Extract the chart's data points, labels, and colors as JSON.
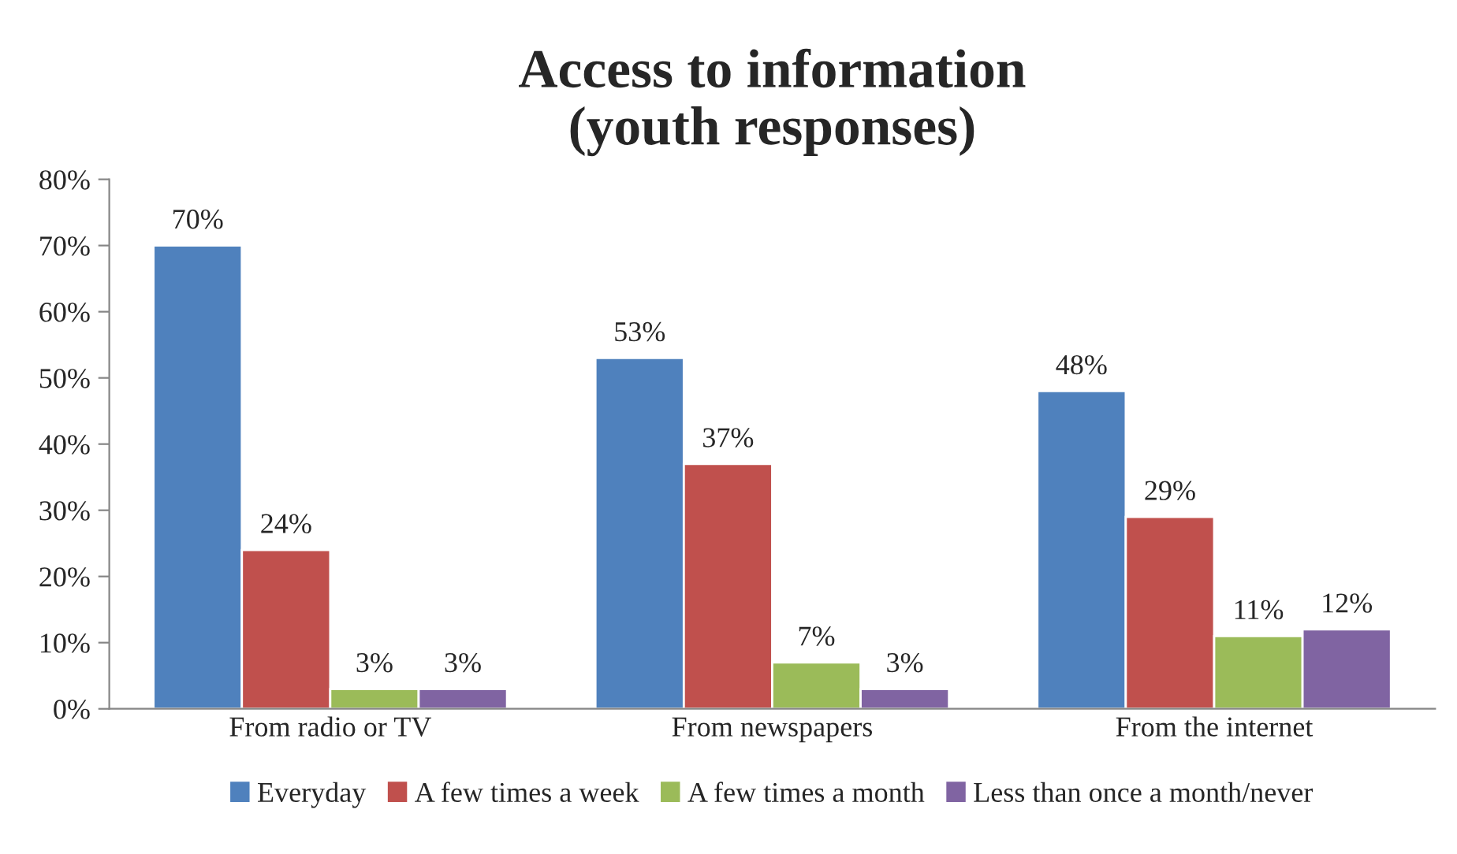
{
  "chart_data": {
    "type": "bar",
    "title": "Access to information\n(youth responses)",
    "categories": [
      "From radio or TV",
      "From newspapers",
      "From the internet"
    ],
    "series": [
      {
        "name": "Everyday",
        "color": "#4f81bd",
        "values": [
          70,
          53,
          48
        ],
        "value_labels": [
          "70%",
          "53%",
          "48%"
        ]
      },
      {
        "name": "A few times a week",
        "color": "#c0504d",
        "values": [
          24,
          37,
          29
        ],
        "value_labels": [
          "24%",
          "37%",
          "29%"
        ]
      },
      {
        "name": "A few times a month",
        "color": "#9bbb59",
        "values": [
          3,
          7,
          11
        ],
        "value_labels": [
          "3%",
          "7%",
          "11%"
        ]
      },
      {
        "name": "Less than once a month/never",
        "color": "#8064a2",
        "values": [
          3,
          3,
          12
        ],
        "value_labels": [
          "3%",
          "3%",
          "12%"
        ]
      }
    ],
    "ylim": [
      0,
      80
    ],
    "yticks": [
      {
        "value": 0,
        "label": "0%"
      },
      {
        "value": 10,
        "label": "10%"
      },
      {
        "value": 20,
        "label": "20%"
      },
      {
        "value": 30,
        "label": "30%"
      },
      {
        "value": 40,
        "label": "40%"
      },
      {
        "value": 50,
        "label": "50%"
      },
      {
        "value": 60,
        "label": "60%"
      },
      {
        "value": 70,
        "label": "70%"
      },
      {
        "value": 80,
        "label": "80%"
      }
    ],
    "grid": false,
    "legend": "bottom"
  }
}
